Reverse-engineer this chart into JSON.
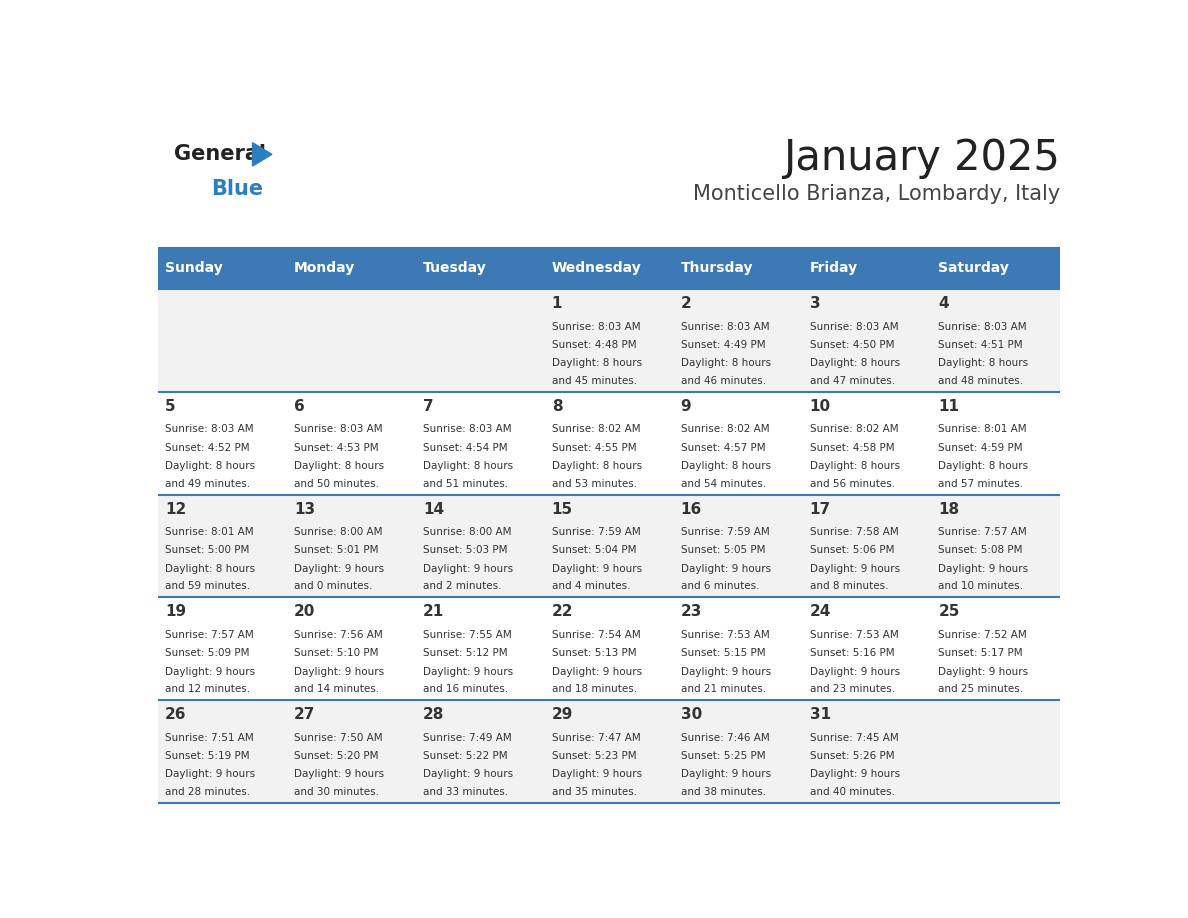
{
  "title": "January 2025",
  "subtitle": "Monticello Brianza, Lombardy, Italy",
  "days_of_week": [
    "Sunday",
    "Monday",
    "Tuesday",
    "Wednesday",
    "Thursday",
    "Friday",
    "Saturday"
  ],
  "header_bg": "#3d7ab5",
  "header_text": "#ffffff",
  "cell_bg_odd": "#f2f2f2",
  "cell_bg_even": "#ffffff",
  "divider_color": "#3d7ab5",
  "text_color": "#333333",
  "logo_general_color": "#222222",
  "logo_blue_color": "#2b7fc1",
  "calendar_data": [
    [
      null,
      null,
      null,
      {
        "day": 1,
        "sunrise": "8:03 AM",
        "sunset": "4:48 PM",
        "daylight": "8 hours and 45 minutes."
      },
      {
        "day": 2,
        "sunrise": "8:03 AM",
        "sunset": "4:49 PM",
        "daylight": "8 hours and 46 minutes."
      },
      {
        "day": 3,
        "sunrise": "8:03 AM",
        "sunset": "4:50 PM",
        "daylight": "8 hours and 47 minutes."
      },
      {
        "day": 4,
        "sunrise": "8:03 AM",
        "sunset": "4:51 PM",
        "daylight": "8 hours and 48 minutes."
      }
    ],
    [
      {
        "day": 5,
        "sunrise": "8:03 AM",
        "sunset": "4:52 PM",
        "daylight": "8 hours and 49 minutes."
      },
      {
        "day": 6,
        "sunrise": "8:03 AM",
        "sunset": "4:53 PM",
        "daylight": "8 hours and 50 minutes."
      },
      {
        "day": 7,
        "sunrise": "8:03 AM",
        "sunset": "4:54 PM",
        "daylight": "8 hours and 51 minutes."
      },
      {
        "day": 8,
        "sunrise": "8:02 AM",
        "sunset": "4:55 PM",
        "daylight": "8 hours and 53 minutes."
      },
      {
        "day": 9,
        "sunrise": "8:02 AM",
        "sunset": "4:57 PM",
        "daylight": "8 hours and 54 minutes."
      },
      {
        "day": 10,
        "sunrise": "8:02 AM",
        "sunset": "4:58 PM",
        "daylight": "8 hours and 56 minutes."
      },
      {
        "day": 11,
        "sunrise": "8:01 AM",
        "sunset": "4:59 PM",
        "daylight": "8 hours and 57 minutes."
      }
    ],
    [
      {
        "day": 12,
        "sunrise": "8:01 AM",
        "sunset": "5:00 PM",
        "daylight": "8 hours and 59 minutes."
      },
      {
        "day": 13,
        "sunrise": "8:00 AM",
        "sunset": "5:01 PM",
        "daylight": "9 hours and 0 minutes."
      },
      {
        "day": 14,
        "sunrise": "8:00 AM",
        "sunset": "5:03 PM",
        "daylight": "9 hours and 2 minutes."
      },
      {
        "day": 15,
        "sunrise": "7:59 AM",
        "sunset": "5:04 PM",
        "daylight": "9 hours and 4 minutes."
      },
      {
        "day": 16,
        "sunrise": "7:59 AM",
        "sunset": "5:05 PM",
        "daylight": "9 hours and 6 minutes."
      },
      {
        "day": 17,
        "sunrise": "7:58 AM",
        "sunset": "5:06 PM",
        "daylight": "9 hours and 8 minutes."
      },
      {
        "day": 18,
        "sunrise": "7:57 AM",
        "sunset": "5:08 PM",
        "daylight": "9 hours and 10 minutes."
      }
    ],
    [
      {
        "day": 19,
        "sunrise": "7:57 AM",
        "sunset": "5:09 PM",
        "daylight": "9 hours and 12 minutes."
      },
      {
        "day": 20,
        "sunrise": "7:56 AM",
        "sunset": "5:10 PM",
        "daylight": "9 hours and 14 minutes."
      },
      {
        "day": 21,
        "sunrise": "7:55 AM",
        "sunset": "5:12 PM",
        "daylight": "9 hours and 16 minutes."
      },
      {
        "day": 22,
        "sunrise": "7:54 AM",
        "sunset": "5:13 PM",
        "daylight": "9 hours and 18 minutes."
      },
      {
        "day": 23,
        "sunrise": "7:53 AM",
        "sunset": "5:15 PM",
        "daylight": "9 hours and 21 minutes."
      },
      {
        "day": 24,
        "sunrise": "7:53 AM",
        "sunset": "5:16 PM",
        "daylight": "9 hours and 23 minutes."
      },
      {
        "day": 25,
        "sunrise": "7:52 AM",
        "sunset": "5:17 PM",
        "daylight": "9 hours and 25 minutes."
      }
    ],
    [
      {
        "day": 26,
        "sunrise": "7:51 AM",
        "sunset": "5:19 PM",
        "daylight": "9 hours and 28 minutes."
      },
      {
        "day": 27,
        "sunrise": "7:50 AM",
        "sunset": "5:20 PM",
        "daylight": "9 hours and 30 minutes."
      },
      {
        "day": 28,
        "sunrise": "7:49 AM",
        "sunset": "5:22 PM",
        "daylight": "9 hours and 33 minutes."
      },
      {
        "day": 29,
        "sunrise": "7:47 AM",
        "sunset": "5:23 PM",
        "daylight": "9 hours and 35 minutes."
      },
      {
        "day": 30,
        "sunrise": "7:46 AM",
        "sunset": "5:25 PM",
        "daylight": "9 hours and 38 minutes."
      },
      {
        "day": 31,
        "sunrise": "7:45 AM",
        "sunset": "5:26 PM",
        "daylight": "9 hours and 40 minutes."
      },
      null
    ]
  ]
}
